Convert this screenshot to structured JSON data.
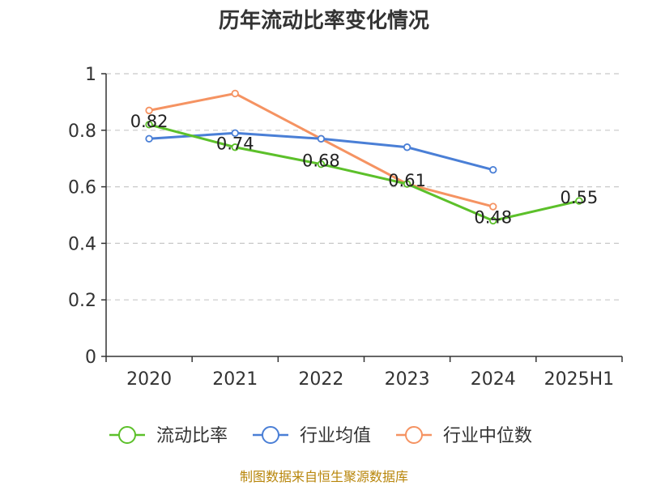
{
  "chart_data": {
    "type": "line",
    "title": "历年流动比率变化情况",
    "categories": [
      "2020",
      "2021",
      "2022",
      "2023",
      "2024",
      "2025H1"
    ],
    "ylim": [
      0,
      1
    ],
    "yticks": [
      "0",
      "0.2",
      "0.4",
      "0.6",
      "0.8",
      "1"
    ],
    "ytick_values": [
      0,
      0.2,
      0.4,
      0.6,
      0.8,
      1
    ],
    "grid": true,
    "legend_position": "bottom",
    "series": [
      {
        "name": "流动比率",
        "color": "#5cc02a",
        "values": [
          0.82,
          0.74,
          0.68,
          0.61,
          0.48,
          0.55
        ],
        "labels": [
          "0.82",
          "0.74",
          "0.68",
          "0.61",
          "0.48",
          "0.55"
        ]
      },
      {
        "name": "行业均值",
        "color": "#4a7fd6",
        "values": [
          0.77,
          0.79,
          0.77,
          0.74,
          0.66,
          null
        ]
      },
      {
        "name": "行业中位数",
        "color": "#f59362",
        "values": [
          0.87,
          0.93,
          0.77,
          0.61,
          0.53,
          null
        ]
      }
    ],
    "source": "制图数据来自恒生聚源数据库"
  }
}
